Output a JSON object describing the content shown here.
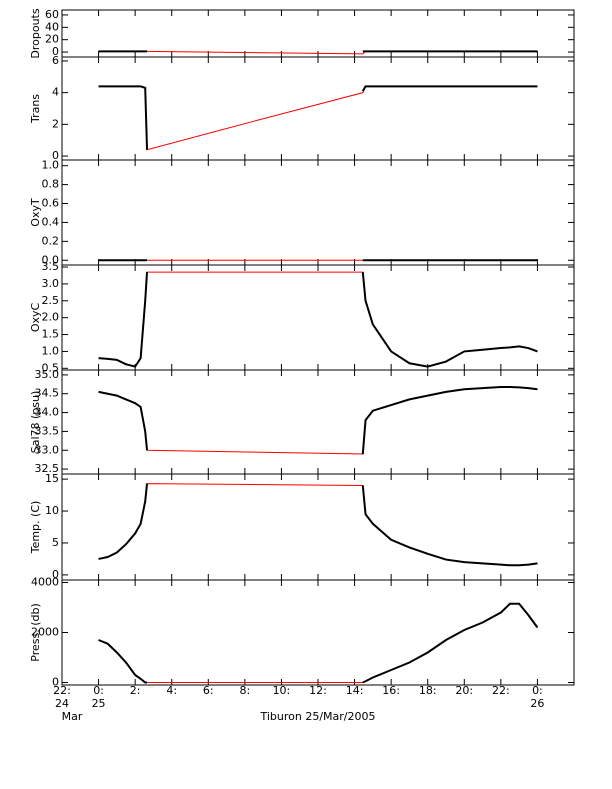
{
  "chart_data": [
    {
      "type": "line",
      "ylabel": "Dropouts",
      "xlim": [
        -2,
        26
      ],
      "ylim": [
        -8,
        68
      ],
      "yticks": [
        0,
        20,
        40,
        60
      ],
      "x": [
        0,
        0.5,
        1,
        1.5,
        2,
        2.3,
        2.55,
        2.65,
        8.5,
        14.45,
        14.6,
        15,
        16,
        17,
        18,
        19,
        20,
        21,
        22,
        22.5,
        23,
        23.5,
        24
      ],
      "series": [
        {
          "color": "#ff0000",
          "values": [
            1,
            1,
            1,
            1,
            1,
            1,
            1,
            1,
            -1,
            -3,
            1,
            1,
            1,
            1,
            1,
            1,
            1,
            1,
            1,
            1,
            1,
            1,
            1
          ]
        },
        {
          "color": "#000000",
          "values": [
            1,
            1,
            1,
            1,
            1,
            1,
            1,
            1,
            null,
            1,
            1,
            1,
            1,
            1,
            1,
            1,
            1,
            1,
            1,
            1,
            1,
            1,
            1
          ]
        }
      ]
    },
    {
      "type": "line",
      "ylabel": "Trans",
      "xlim": [
        -2,
        26
      ],
      "ylim": [
        -0.25,
        6.25
      ],
      "yticks": [
        0,
        2,
        4,
        6
      ],
      "x": [
        0,
        0.5,
        1,
        1.5,
        2,
        2.3,
        2.55,
        2.65,
        8.5,
        14.45,
        14.6,
        15,
        16,
        17,
        18,
        19,
        20,
        21,
        22,
        22.5,
        23,
        23.5,
        24
      ],
      "series": [
        {
          "color": "#ff0000",
          "values": [
            4.4,
            4.4,
            4.4,
            4.4,
            4.4,
            4.4,
            4.3,
            0.4,
            2.2,
            4.0,
            4.4,
            4.4,
            4.4,
            4.4,
            4.4,
            4.4,
            4.4,
            4.4,
            4.4,
            4.4,
            4.4,
            4.4,
            4.4
          ]
        },
        {
          "color": "#000000",
          "values": [
            4.4,
            4.4,
            4.4,
            4.4,
            4.4,
            4.4,
            4.3,
            0.4,
            null,
            4.1,
            4.4,
            4.4,
            4.4,
            4.4,
            4.4,
            4.4,
            4.4,
            4.4,
            4.4,
            4.4,
            4.4,
            4.4,
            4.4
          ]
        }
      ]
    },
    {
      "type": "line",
      "ylabel": "OxyT",
      "xlim": [
        -2,
        26
      ],
      "ylim": [
        -0.05,
        1.06
      ],
      "yticks": [
        {
          "value": 0,
          "label": "0.0"
        },
        {
          "value": 0.2,
          "label": "0.2"
        },
        {
          "value": 0.4,
          "label": "0.4"
        },
        {
          "value": 0.6,
          "label": "0.6"
        },
        {
          "value": 0.8,
          "label": "0.8"
        },
        {
          "value": 1,
          "label": "1.0"
        }
      ],
      "x": [
        0,
        0.5,
        1,
        1.5,
        2,
        2.3,
        2.55,
        2.65,
        8.5,
        14.45,
        14.6,
        15,
        16,
        17,
        18,
        19,
        20,
        21,
        22,
        22.5,
        23,
        23.5,
        24
      ],
      "series": [
        {
          "color": "#ff0000",
          "values": [
            0,
            0,
            0,
            0,
            0,
            0,
            0,
            0,
            0,
            0,
            0,
            0,
            0,
            0,
            0,
            0,
            0,
            0,
            0,
            0,
            0,
            0,
            0
          ]
        },
        {
          "color": "#000000",
          "values": [
            0,
            0,
            0,
            0,
            0,
            0,
            0,
            0,
            null,
            0,
            0,
            0,
            0,
            0,
            0,
            0,
            0,
            0,
            0,
            0,
            0,
            0,
            0
          ]
        }
      ]
    },
    {
      "type": "line",
      "ylabel": "OxyC",
      "xlim": [
        -2,
        26
      ],
      "ylim": [
        0.45,
        3.56
      ],
      "yticks": [
        {
          "value": 0.5,
          "label": "0.5"
        },
        {
          "value": 1,
          "label": "1.0"
        },
        {
          "value": 1.5,
          "label": "1.5"
        },
        {
          "value": 2,
          "label": "2.0"
        },
        {
          "value": 2.5,
          "label": "2.5"
        },
        {
          "value": 3,
          "label": "3.0"
        },
        {
          "value": 3.5,
          "label": "3.5"
        }
      ],
      "x": [
        0,
        0.5,
        1,
        1.5,
        2,
        2.3,
        2.55,
        2.65,
        8.5,
        14.45,
        14.6,
        15,
        16,
        17,
        18,
        19,
        20,
        21,
        22,
        22.5,
        23,
        23.5,
        24
      ],
      "series": [
        {
          "color": "#ff0000",
          "values": [
            0.8,
            0.78,
            0.75,
            0.62,
            0.55,
            0.8,
            2.5,
            3.35,
            3.35,
            3.35,
            2.5,
            1.8,
            1.0,
            0.65,
            0.55,
            0.7,
            1.0,
            1.05,
            1.1,
            1.12,
            1.15,
            1.1,
            1.0
          ]
        },
        {
          "color": "#000000",
          "values": [
            0.8,
            0.78,
            0.75,
            0.62,
            0.55,
            0.8,
            2.5,
            3.35,
            null,
            3.35,
            2.5,
            1.8,
            1.0,
            0.65,
            0.55,
            0.7,
            1.0,
            1.05,
            1.1,
            1.12,
            1.15,
            1.1,
            1.0
          ]
        }
      ]
    },
    {
      "type": "line",
      "ylabel": "Sal78 (psu)",
      "xlim": [
        -2,
        26
      ],
      "ylim": [
        32.37,
        35.13
      ],
      "yticks": [
        {
          "value": 32.5,
          "label": "32.5"
        },
        {
          "value": 33,
          "label": "33.0"
        },
        {
          "value": 33.5,
          "label": "33.5"
        },
        {
          "value": 34,
          "label": "34.0"
        },
        {
          "value": 34.5,
          "label": "34.5"
        },
        {
          "value": 35,
          "label": "35.0"
        }
      ],
      "x": [
        0,
        0.5,
        1,
        1.5,
        2,
        2.3,
        2.55,
        2.65,
        8.5,
        14.45,
        14.6,
        15,
        16,
        17,
        18,
        19,
        20,
        21,
        22,
        22.5,
        23,
        23.5,
        24
      ],
      "series": [
        {
          "color": "#ff0000",
          "values": [
            34.55,
            34.5,
            34.45,
            34.35,
            34.25,
            34.15,
            33.5,
            33.0,
            32.95,
            32.9,
            33.8,
            34.05,
            34.2,
            34.35,
            34.45,
            34.55,
            34.62,
            34.65,
            34.68,
            34.68,
            34.67,
            34.65,
            34.62
          ]
        },
        {
          "color": "#000000",
          "values": [
            34.55,
            34.5,
            34.45,
            34.35,
            34.25,
            34.15,
            33.5,
            33.0,
            null,
            32.9,
            33.8,
            34.05,
            34.2,
            34.35,
            34.45,
            34.55,
            34.62,
            34.65,
            34.68,
            34.68,
            34.67,
            34.65,
            34.62
          ]
        }
      ]
    },
    {
      "type": "line",
      "ylabel": "Temp. (C)",
      "xlim": [
        -2,
        26
      ],
      "ylim": [
        -0.8,
        15.8
      ],
      "yticks": [
        0,
        5,
        10,
        15
      ],
      "x": [
        0,
        0.5,
        1,
        1.5,
        2,
        2.3,
        2.55,
        2.65,
        8.5,
        14.45,
        14.6,
        15,
        16,
        17,
        18,
        19,
        20,
        21,
        22,
        22.5,
        23,
        23.5,
        24
      ],
      "series": [
        {
          "color": "#ff0000",
          "values": [
            2.5,
            2.8,
            3.5,
            4.8,
            6.5,
            8,
            11.5,
            14.3,
            14.15,
            14.0,
            9.5,
            8,
            5.5,
            4.3,
            3.3,
            2.4,
            2.0,
            1.8,
            1.6,
            1.5,
            1.5,
            1.6,
            1.8
          ]
        },
        {
          "color": "#000000",
          "values": [
            2.5,
            2.8,
            3.5,
            4.8,
            6.5,
            8,
            11.5,
            14.3,
            null,
            14.0,
            9.5,
            8,
            5.5,
            4.3,
            3.3,
            2.4,
            2.0,
            1.8,
            1.6,
            1.5,
            1.5,
            1.6,
            1.8
          ]
        }
      ]
    },
    {
      "type": "line",
      "ylabel": "Press. (db)",
      "xlabel": "Tiburon 25/Mar/2005",
      "xlim": [
        -2,
        26
      ],
      "ylim": [
        -100,
        4100
      ],
      "yticks": [
        0,
        2000,
        4000
      ],
      "xticks": [
        {
          "value": -2,
          "label": "22:"
        },
        {
          "value": 0,
          "label": "0:"
        },
        {
          "value": 2,
          "label": "2:"
        },
        {
          "value": 4,
          "label": "4:"
        },
        {
          "value": 6,
          "label": "6:"
        },
        {
          "value": 8,
          "label": "8:"
        },
        {
          "value": 10,
          "label": "10:"
        },
        {
          "value": 12,
          "label": "12:"
        },
        {
          "value": 14,
          "label": "14:"
        },
        {
          "value": 16,
          "label": "16:"
        },
        {
          "value": 18,
          "label": "18:"
        },
        {
          "value": 20,
          "label": "20:"
        },
        {
          "value": 22,
          "label": "22:"
        },
        {
          "value": 24,
          "label": "0:"
        }
      ],
      "xtick_day_labels": [
        {
          "value": -2,
          "label": "24"
        },
        {
          "value": 0,
          "label": "25"
        },
        {
          "value": 24,
          "label": "26"
        }
      ],
      "xtick_month_labels": [
        {
          "value": -2,
          "label": "Mar"
        }
      ],
      "x": [
        0,
        0.5,
        1,
        1.5,
        2,
        2.3,
        2.55,
        2.65,
        8.5,
        14.45,
        14.6,
        15,
        16,
        17,
        18,
        19,
        20,
        21,
        22,
        22.5,
        23,
        23.5,
        24
      ],
      "series": [
        {
          "color": "#ff0000",
          "values": [
            1700,
            1550,
            1200,
            800,
            300,
            150,
            0,
            0,
            0,
            0,
            50,
            200,
            500,
            800,
            1200,
            1700,
            2100,
            2400,
            2800,
            3150,
            3150,
            2700,
            2200
          ]
        },
        {
          "color": "#000000",
          "values": [
            1700,
            1550,
            1200,
            800,
            300,
            150,
            0,
            0,
            null,
            0,
            50,
            200,
            500,
            800,
            1200,
            1700,
            2100,
            2400,
            2800,
            3150,
            3150,
            2700,
            2200
          ]
        }
      ]
    }
  ]
}
